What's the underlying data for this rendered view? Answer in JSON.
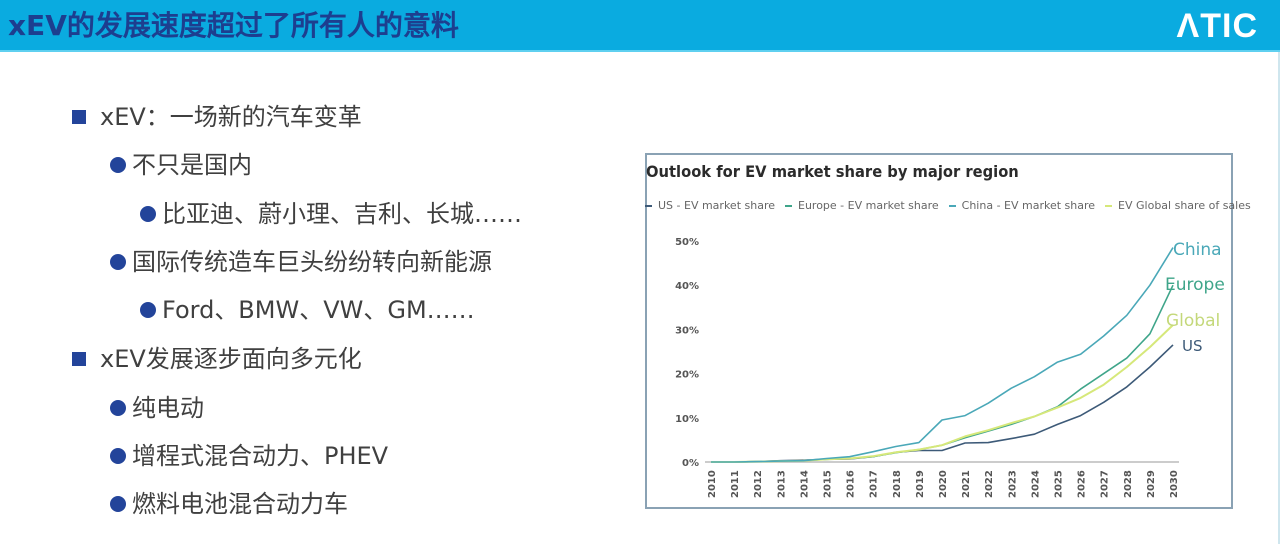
{
  "header": {
    "title": "xEV的发展速度超过了所有人的意料",
    "logo": "ΛTIC"
  },
  "bullets": [
    {
      "level": 1,
      "text": "xEV：一场新的汽车变革"
    },
    {
      "level": 2,
      "text": "不只是国内"
    },
    {
      "level": 3,
      "text": "比亚迪、蔚小理、吉利、长城……"
    },
    {
      "level": 2,
      "text": "国际传统造车巨头纷纷转向新能源"
    },
    {
      "level": 3,
      "text": "Ford、BMW、VW、GM……"
    },
    {
      "level": 1,
      "text": "xEV发展逐步面向多元化"
    },
    {
      "level": 2,
      "text": "纯电动"
    },
    {
      "level": 2,
      "text": "增程式混合动力、PHEV"
    },
    {
      "level": 2,
      "text": "燃料电池混合动力车"
    }
  ],
  "colors": {
    "header_bg": "#0aabe0",
    "title_text": "#1d3e8f",
    "bullet": "#23449a",
    "us": "#3d5a78",
    "europe": "#3fa58a",
    "china": "#4aa8b8",
    "global": "#d6e87a"
  },
  "chart_data": {
    "type": "line",
    "title": "Outlook for EV market share by major region",
    "xlabel": "",
    "ylabel": "",
    "ylim": [
      0,
      50
    ],
    "yticks": [
      "0%",
      "10%",
      "20%",
      "30%",
      "40%",
      "50%"
    ],
    "grid": false,
    "legend_position": "top",
    "x": [
      2010,
      2011,
      2012,
      2013,
      2014,
      2015,
      2016,
      2017,
      2018,
      2019,
      2020,
      2021,
      2022,
      2023,
      2024,
      2025,
      2026,
      2027,
      2028,
      2029,
      2030
    ],
    "series": [
      {
        "name": "US - EV market share",
        "label": "US",
        "color": "#3d5a78",
        "values": [
          0,
          0,
          0.1,
          0.3,
          0.4,
          0.6,
          0.7,
          1.2,
          2.2,
          2.6,
          2.6,
          4.3,
          4.4,
          5.3,
          6.3,
          8.5,
          10.5,
          13.5,
          17,
          21.5,
          26.5
        ]
      },
      {
        "name": "Europe - EV market share",
        "label": "Europe",
        "color": "#3fa58a",
        "values": [
          0,
          0,
          0.1,
          0.2,
          0.3,
          0.6,
          0.8,
          1.2,
          2.1,
          2.8,
          3.8,
          5.5,
          7.0,
          8.5,
          10.3,
          12.5,
          16.5,
          20,
          23.5,
          29,
          40
        ]
      },
      {
        "name": "China - EV market share",
        "label": "China",
        "color": "#4aa8b8",
        "values": [
          0,
          0,
          0.1,
          0.2,
          0.3,
          0.8,
          1.2,
          2.3,
          3.5,
          4.4,
          9.5,
          10.5,
          13.3,
          16.7,
          19.3,
          22.6,
          24.4,
          28.5,
          33.2,
          40,
          48.5
        ]
      },
      {
        "name": "EV Global share of sales",
        "label": "Global",
        "color": "#d6e87a",
        "values": [
          0,
          0,
          0.1,
          0.2,
          0.3,
          0.6,
          0.8,
          1.3,
          2.2,
          2.8,
          3.8,
          5.8,
          7.2,
          8.8,
          10.3,
          12.3,
          14.5,
          17.5,
          21.5,
          26,
          31
        ]
      }
    ]
  }
}
